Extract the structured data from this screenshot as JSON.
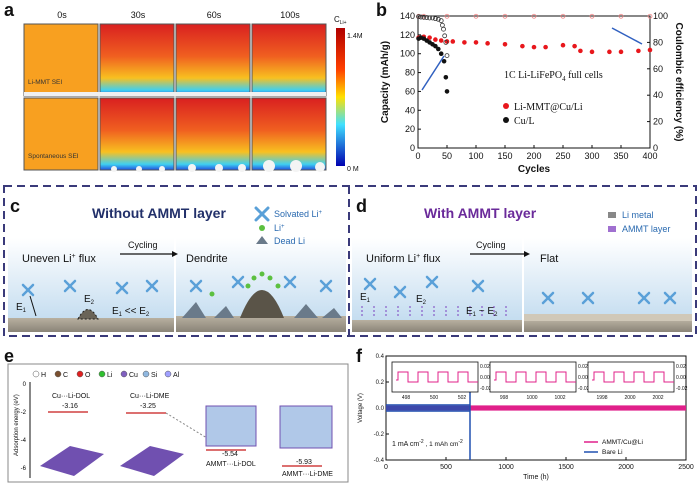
{
  "panel_a": {
    "letter": "a",
    "times": [
      "0s",
      "30s",
      "60s",
      "100s"
    ],
    "row_labels": [
      "Li-MMT SEI",
      "Spontaneous SEI"
    ],
    "colorbar_title": "C",
    "colorbar_sub": "Li+",
    "colorbar_max": "1.4M",
    "colorbar_min": "0 M"
  },
  "panel_b": {
    "letter": "b",
    "annotation": "1C  Li-LiFePO",
    "annotation_sub": "4",
    "annotation_tail": " full cells",
    "colors": {
      "mmt": "#e8171c",
      "cu": "#111111"
    },
    "chart_data": {
      "type": "scatter",
      "xlabel": "Cycles",
      "ylabel": "Capacity (mAh/g)",
      "y2label": "Coulombic efficiency (%)",
      "xlim": [
        0,
        400
      ],
      "ylim": [
        0,
        140
      ],
      "y2lim": [
        0,
        100
      ],
      "xticks": [
        0,
        50,
        100,
        150,
        200,
        250,
        300,
        350,
        400
      ],
      "yticks": [
        0,
        20,
        40,
        60,
        80,
        100,
        120,
        140
      ],
      "y2ticks": [
        0,
        20,
        40,
        60,
        80,
        100
      ],
      "series": [
        {
          "name": "Li-MMT@Cu/Li",
          "type": "capacity",
          "x": [
            1,
            10,
            20,
            30,
            40,
            50,
            60,
            80,
            100,
            120,
            150,
            180,
            200,
            220,
            250,
            270,
            280,
            300,
            330,
            350,
            380,
            400
          ],
          "y": [
            117,
            118,
            117,
            115,
            114,
            113,
            113,
            112,
            112,
            111,
            110,
            108,
            107,
            107,
            109,
            108,
            103,
            102,
            102,
            102,
            103,
            104
          ]
        },
        {
          "name": "Cu/L",
          "type": "capacity",
          "x": [
            1,
            5,
            10,
            15,
            20,
            25,
            30,
            35,
            40,
            45,
            48,
            50
          ],
          "y": [
            116,
            117,
            116,
            114,
            112,
            110,
            108,
            105,
            100,
            92,
            75,
            60
          ]
        },
        {
          "name": "Li-MMT@Cu/Li",
          "type": "efficiency",
          "x": [
            1,
            10,
            50,
            100,
            150,
            200,
            250,
            300,
            350,
            400
          ],
          "y": [
            99.8,
            99.8,
            99.8,
            99.8,
            99.8,
            99.8,
            99.8,
            99.8,
            99.8,
            99.8
          ]
        },
        {
          "name": "Cu/L",
          "type": "efficiency",
          "x": [
            1,
            5,
            10,
            15,
            20,
            25,
            30,
            35,
            40,
            42,
            44,
            46,
            48,
            50
          ],
          "y": [
            99.5,
            99.2,
            99.0,
            98.8,
            98.5,
            98.5,
            98.0,
            97.5,
            96.5,
            93,
            90,
            85,
            80,
            70
          ]
        }
      ]
    }
  },
  "panel_c": {
    "letter": "c",
    "title": "Without AMMT layer",
    "uneven": "Uneven Li",
    "uneven_sup": "+",
    "uneven_tail": " flux",
    "cycling": "Cycling",
    "dendrite": "Dendrite",
    "e1": "E",
    "e1_sub": "1",
    "e2": "E",
    "e2_sub": "2",
    "relation": "E",
    "relation_a": "1",
    "relation_mid": " << E",
    "relation_b": "2",
    "legend": {
      "solvated": "Solvated Li",
      "solvated_sup": "+",
      "li": "Li",
      "li_sup": "+",
      "dead": "Dead Li"
    }
  },
  "panel_d": {
    "letter": "d",
    "title": "With AMMT layer",
    "uniform": "Uniform Li",
    "uniform_sup": "+",
    "uniform_tail": " flux",
    "cycling": "Cycling",
    "flat": "Flat",
    "relation": "E",
    "relation_a": "1",
    "relation_mid": " ~ E",
    "relation_b": "2",
    "legend": {
      "li_metal": "Li metal",
      "ammt": "AMMT layer"
    }
  },
  "panel_e": {
    "letter": "e",
    "atoms": [
      "H",
      "C",
      "O",
      "Li",
      "Cu",
      "Si",
      "Al"
    ],
    "atom_colors": [
      "#ffffff",
      "#7a5030",
      "#e02020",
      "#30c030",
      "#8060c0",
      "#90b8e0",
      "#a0a0ff"
    ],
    "ylabel": "Adsorption energy (eV)",
    "yticks": [
      "0",
      "-2",
      "-4",
      "-6"
    ],
    "labels": [
      {
        "name": "Cu···Li-DOL",
        "value": "-3.16"
      },
      {
        "name": "Cu···Li-DME",
        "value": "-3.25"
      },
      {
        "name": "AMMT···Li-DOL",
        "value": "-5.54"
      },
      {
        "name": "AMMT···Li-DME",
        "value": "-5.93"
      }
    ]
  },
  "panel_f": {
    "letter": "f",
    "colors": {
      "ammt": "#e0208a",
      "bare": "#2050b0"
    },
    "chart_data": {
      "type": "line",
      "xlabel": "Time (h)",
      "ylabel": "Voltage (V)",
      "xlim": [
        0,
        2500
      ],
      "ylim": [
        -0.4,
        0.4
      ],
      "xticks": [
        0,
        500,
        1000,
        1500,
        2000,
        2500
      ],
      "yticks": [
        -0.4,
        -0.2,
        0.0,
        0.2,
        0.4
      ],
      "series": [
        {
          "name": "AMMT/Cu@Li",
          "amplitude": 0.02,
          "x": [
            0,
            2500
          ]
        },
        {
          "name": "Bare Li",
          "amplitude": 0.03,
          "x": [
            0,
            700
          ],
          "spike_at": 700
        }
      ],
      "insets": [
        {
          "xticks": [
            "498",
            "500",
            "502"
          ],
          "yticks": [
            "0.02",
            "0.00",
            "-0.02"
          ]
        },
        {
          "xticks": [
            "998",
            "1000",
            "1002"
          ],
          "yticks": [
            "0.02",
            "0.00",
            "-0.02"
          ]
        },
        {
          "xticks": [
            "1998",
            "2000",
            "2002"
          ],
          "yticks": [
            "0.02",
            "0.00",
            "-0.02"
          ]
        }
      ]
    },
    "condition": "1 mA cm",
    "condition_sup": "-2",
    "condition_mid": " , 1 mAh cm",
    "condition_sup2": "-2"
  }
}
